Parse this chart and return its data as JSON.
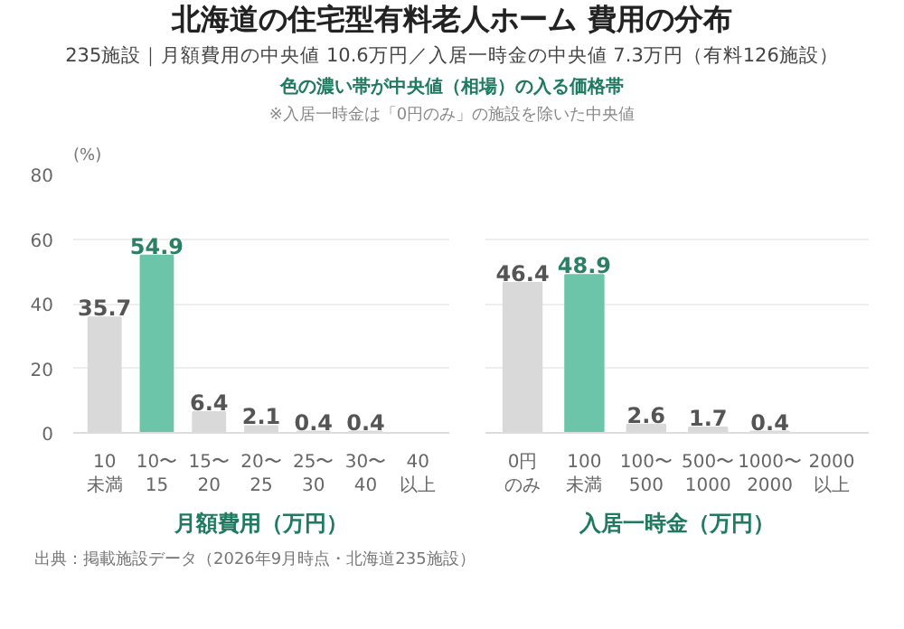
{
  "chart_data": [
    {
      "type": "bar",
      "title": "北海道の住宅型有料老人ホーム 費用の分布",
      "subtitle": "235施設｜月額費用の中央値 10.6万円／入居一時金の中央値 7.3万円（有料126施設）",
      "annotations": [
        "色の濃い帯が中央値（相場）の入る価格帯",
        "※入居一時金は「0円のみ」の施設を除いた中央値",
        "出典：掲載施設データ（2026年9月時点・北海道235施設）"
      ],
      "categories": [
        "10\n未満",
        "10〜\n15",
        "15〜\n20",
        "20〜\n25",
        "25〜\n30",
        "30〜\n40",
        "40\n以上"
      ],
      "values": [
        35.7,
        54.9,
        6.4,
        2.1,
        0.4,
        0.4,
        0
      ],
      "value_labels": [
        "35.7",
        "54.9",
        "6.4",
        "2.1",
        "0.4",
        "0.4",
        null
      ],
      "colors": [
        "#d9d9d9",
        "#6cc5a8",
        "#d9d9d9",
        "#d9d9d9",
        "#d9d9d9",
        "#d9d9d9",
        "#d9d9d9"
      ],
      "xlabel": "月額費用（万円）",
      "ylabel": "(%)",
      "ylim": [
        0,
        80
      ],
      "yticks": [
        0,
        20,
        40,
        60,
        80
      ],
      "grid": "y"
    },
    {
      "type": "bar",
      "categories": [
        "0円のみ",
        "100\n未満",
        "100〜\n500",
        "500〜\n1000",
        "1000〜\n2000",
        "2000\n以上"
      ],
      "values": [
        46.4,
        48.9,
        2.6,
        1.7,
        0.4,
        0
      ],
      "value_labels": [
        "46.4",
        "48.9",
        "2.6",
        "1.7",
        "0.4",
        null
      ],
      "colors": [
        "#d9d9d9",
        "#6cc5a8",
        "#d9d9d9",
        "#d9d9d9",
        "#d9d9d9",
        "#d9d9d9"
      ],
      "xlabel": "入居一時金（万円）",
      "ylim": [
        0,
        80
      ],
      "yticks": [
        0,
        20,
        40,
        60,
        80
      ],
      "grid": "y",
      "tick_labels": "x"
    }
  ]
}
